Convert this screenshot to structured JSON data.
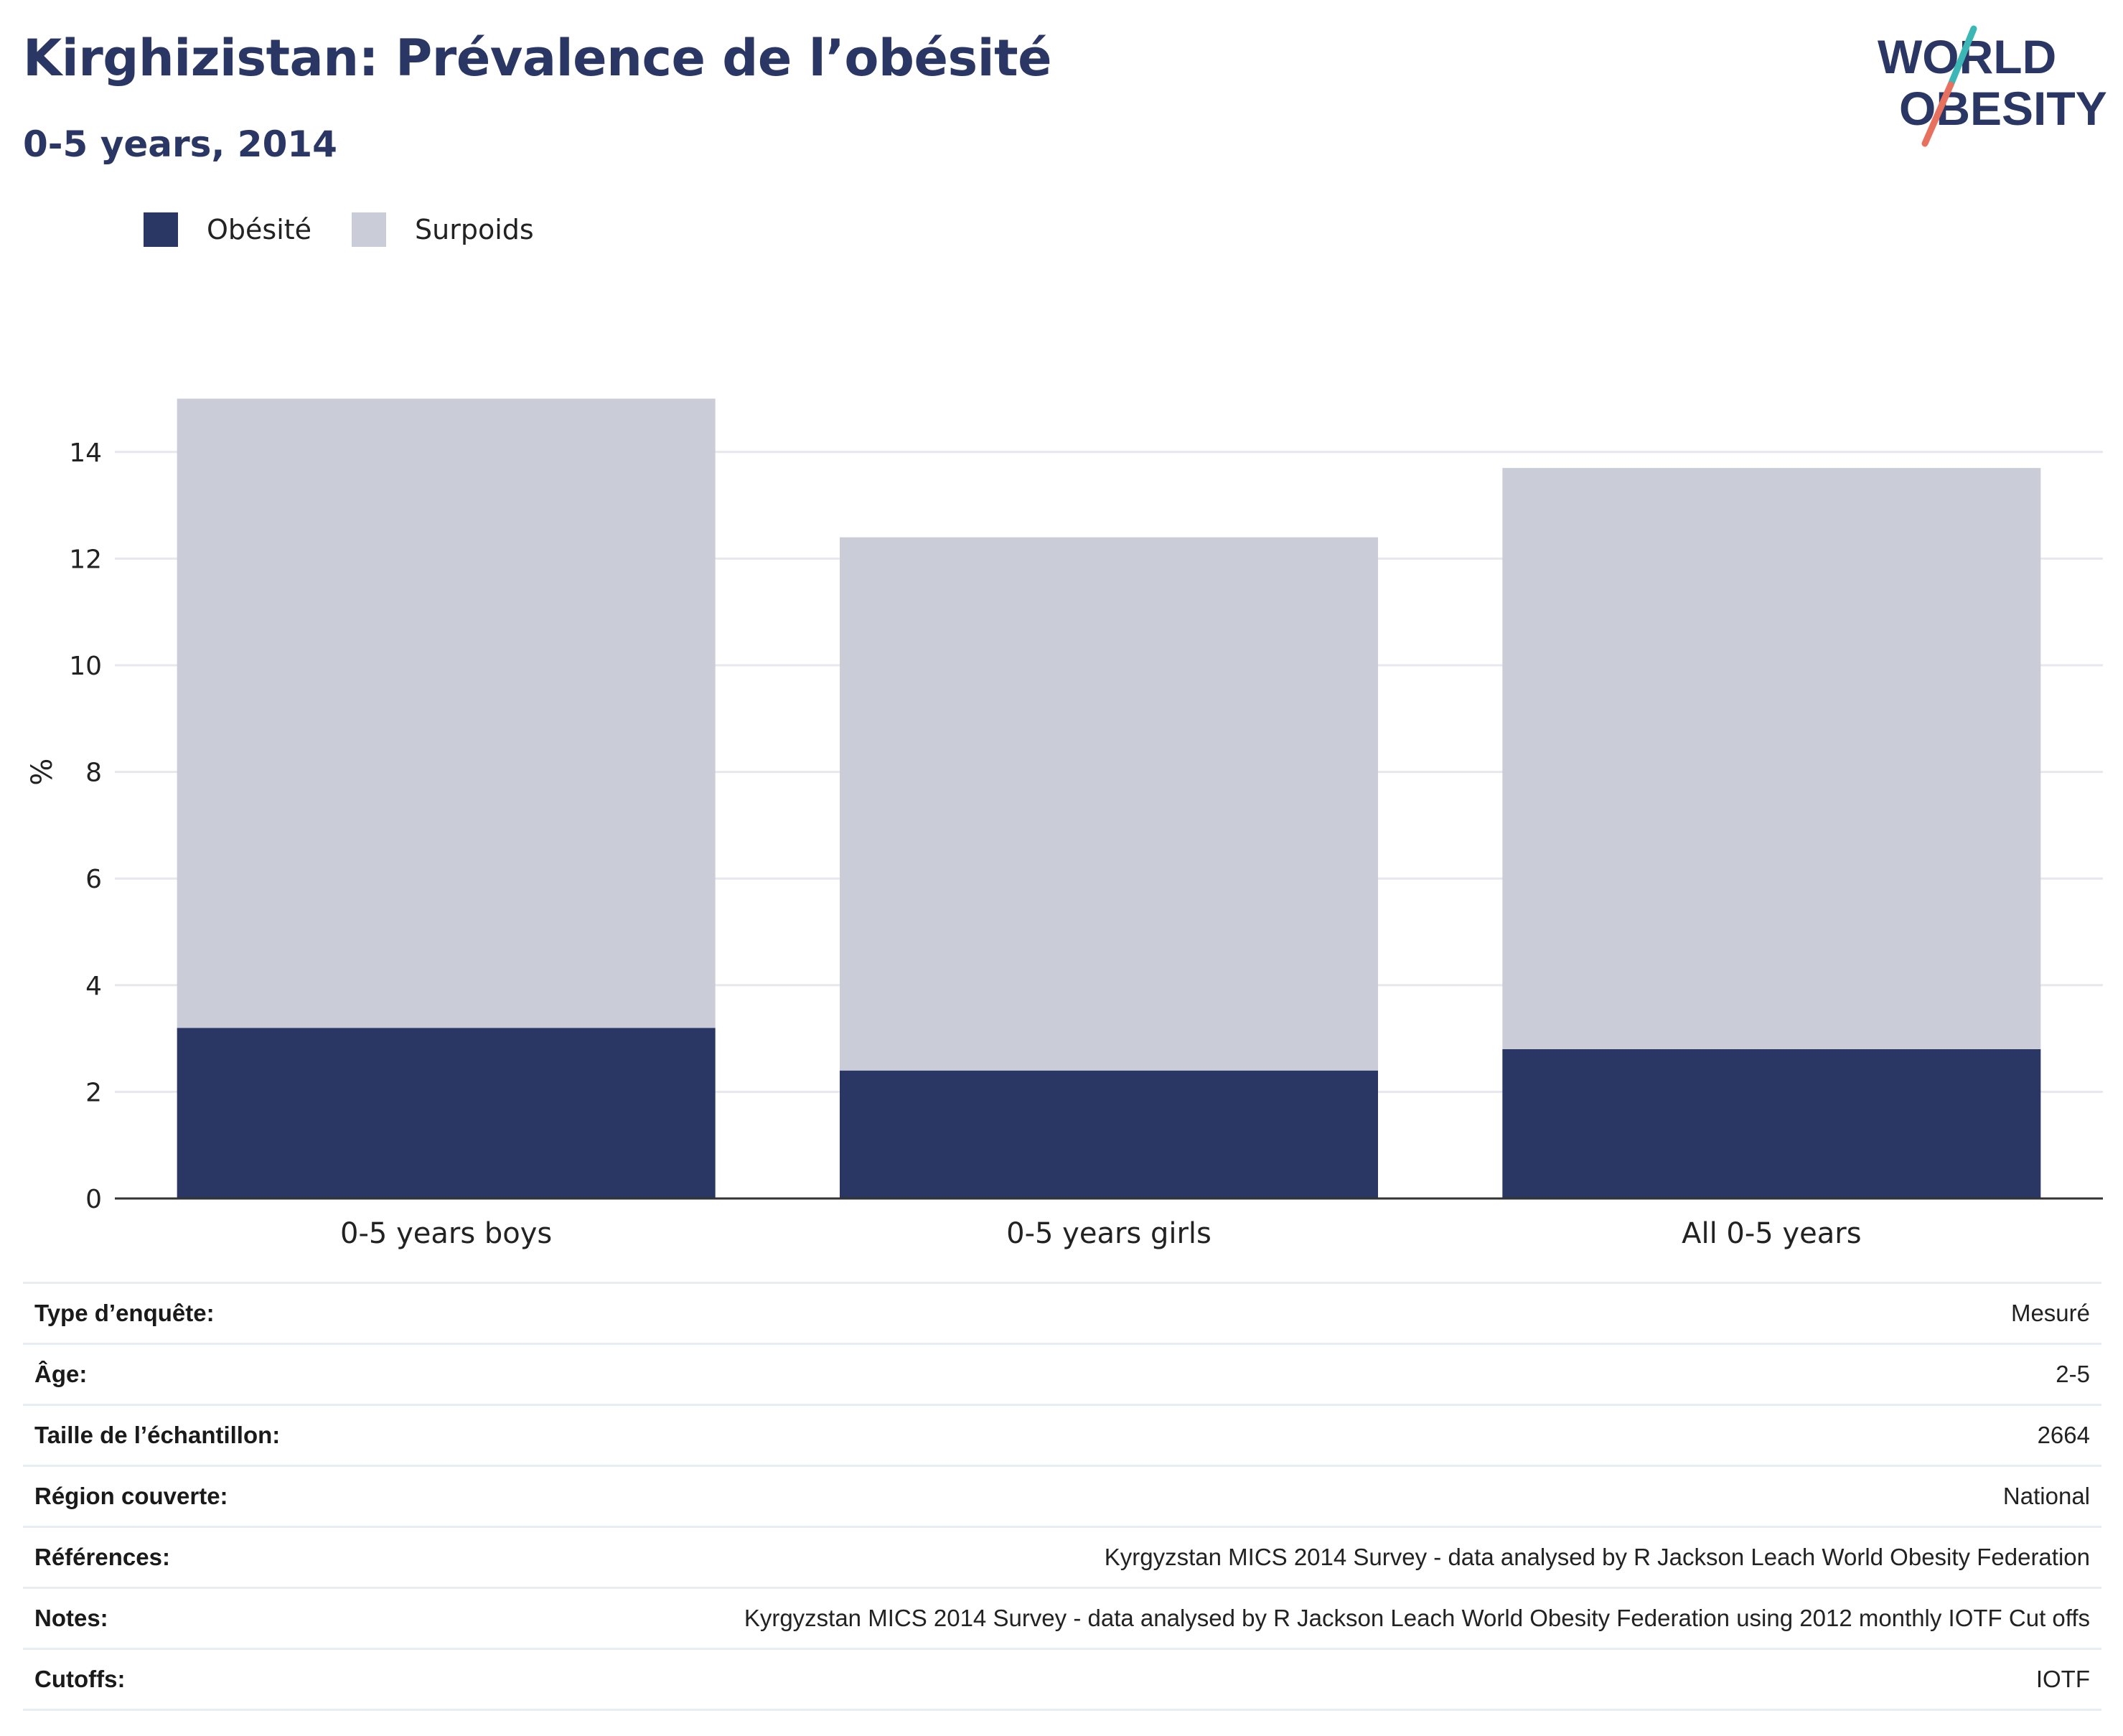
{
  "header": {
    "title": "Kirghizistan: Prévalence de l’obésité",
    "subtitle": "0-5 years, 2014"
  },
  "logo": {
    "line1": "WORLD",
    "line2": "OBESITY"
  },
  "colors": {
    "obesity": "#2a3664",
    "overweight": "#cacdd8",
    "grid": "#e6e8ee",
    "axis": "#333333",
    "logo_text": "#2a3664",
    "logo_teal": "#3bb8b5",
    "logo_coral": "#e8705f"
  },
  "chart_data": {
    "type": "bar",
    "stacked": true,
    "categories": [
      "0-5 years boys",
      "0-5 years girls",
      "All 0-5 years"
    ],
    "series": [
      {
        "name": "Obésité",
        "values": [
          3.2,
          2.4,
          2.8
        ],
        "color": "#2a3664"
      },
      {
        "name": "Surpoids",
        "values": [
          11.8,
          10.0,
          10.9
        ],
        "color": "#cacdd8"
      }
    ],
    "ylabel": "%",
    "xlabel": "",
    "ylim": [
      0,
      16
    ],
    "yticks": [
      0,
      2,
      4,
      6,
      8,
      10,
      12,
      14
    ],
    "grid": true,
    "legend_position": "top-left"
  },
  "info": [
    {
      "label": "Type d’enquête:",
      "value": "Mesuré"
    },
    {
      "label": "Âge:",
      "value": "2-5"
    },
    {
      "label": "Taille de l’échantillon:",
      "value": "2664"
    },
    {
      "label": "Région couverte:",
      "value": "National"
    },
    {
      "label": "Références:",
      "value": "Kyrgyzstan MICS 2014 Survey - data analysed by R Jackson Leach World Obesity Federation"
    },
    {
      "label": "Notes:",
      "value": "Kyrgyzstan MICS 2014 Survey - data analysed by R Jackson Leach World Obesity Federation using 2012 monthly IOTF Cut offs"
    },
    {
      "label": "Cutoffs:",
      "value": "IOTF"
    }
  ]
}
